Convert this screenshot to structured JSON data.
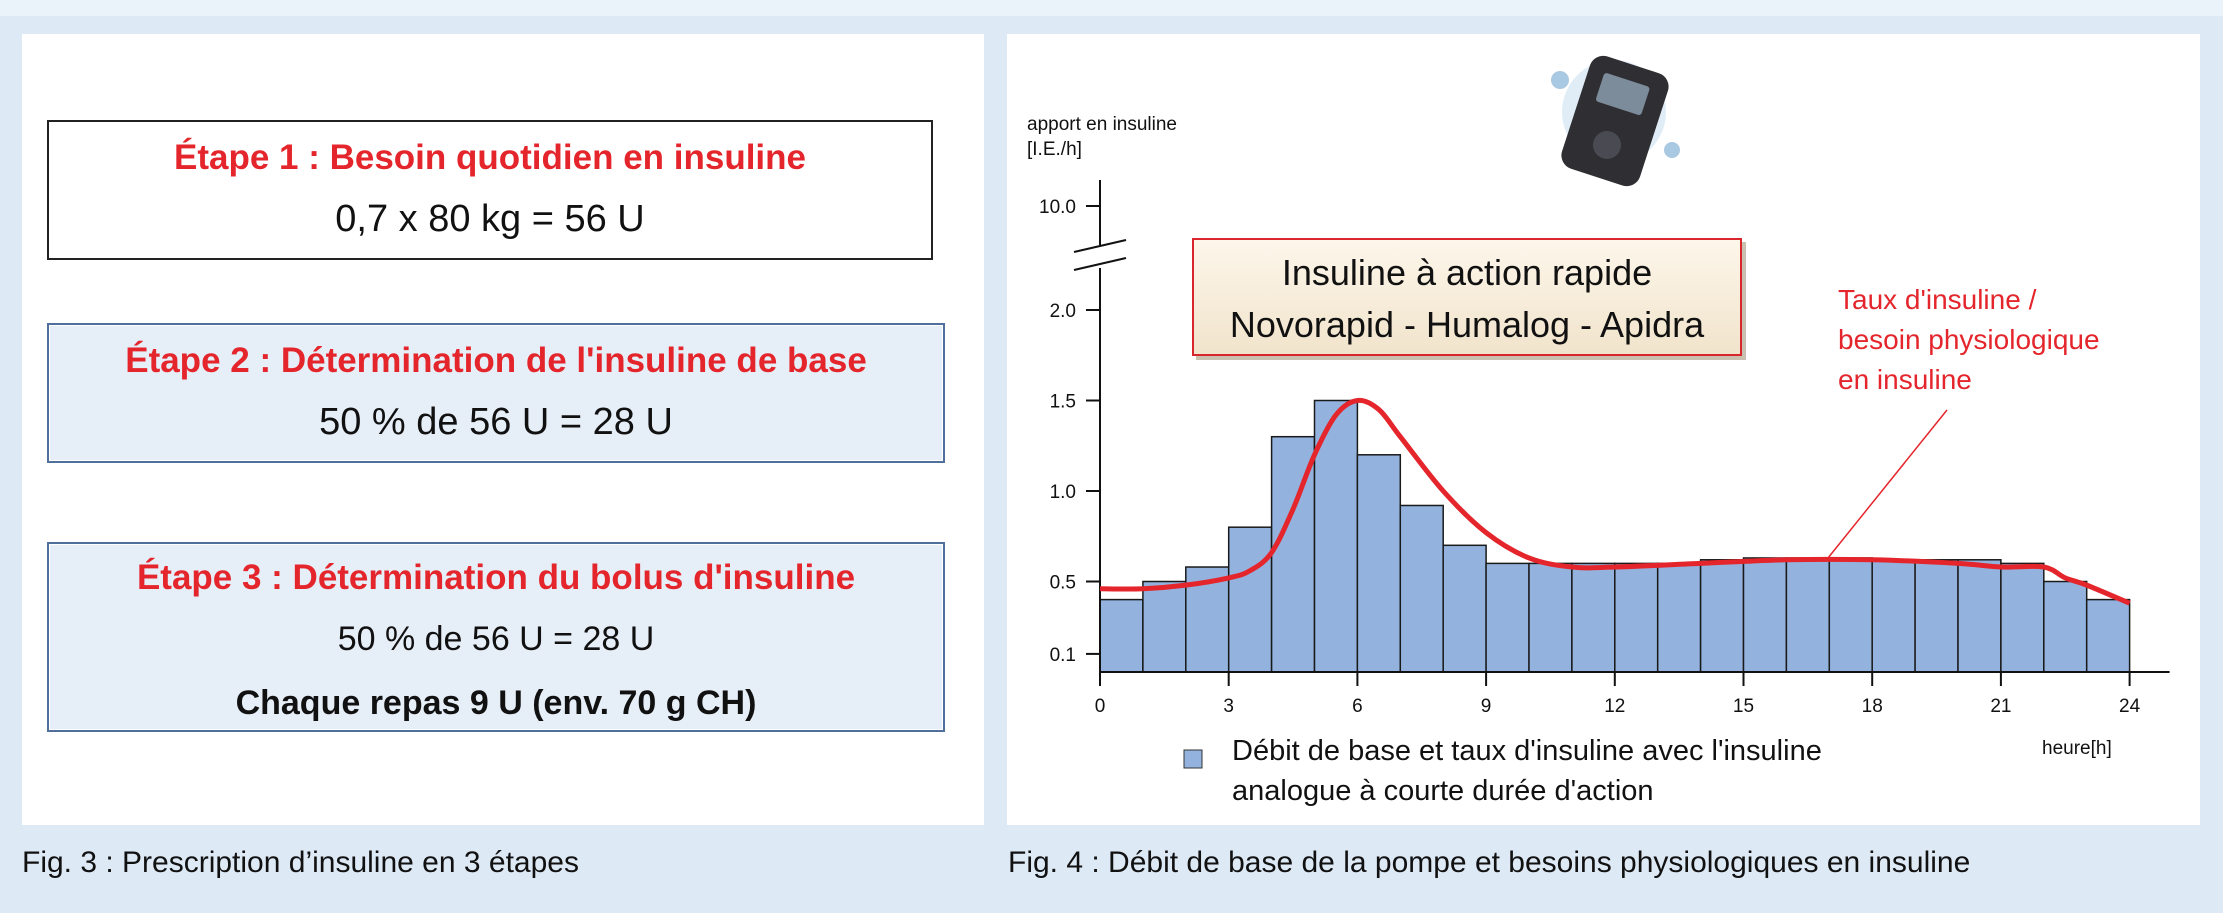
{
  "fig3": {
    "step1": {
      "title": "Étape 1 : Besoin quotidien en insuline",
      "line": "0,7 x 80 kg = 56 U"
    },
    "step2": {
      "title": "Étape 2 : Détermination de l'insuline de base",
      "line": "50 % de 56 U = 28 U"
    },
    "step3": {
      "title": "Étape 3 : Détermination du bolus d'insuline",
      "line1": "50 % de 56 U = 28 U",
      "line2": "Chaque repas 9 U (env. 70 g CH)"
    },
    "caption": "Fig. 3 : Prescription d’insuline en 3 étapes"
  },
  "fig4": {
    "caption": "Fig. 4 : Débit de base de la pompe et besoins physiologiques en insuline",
    "device_image": "insulin-pump-photo",
    "title_line1": "Insuline à action rapide",
    "title_line2": "Novorapid - Humalog - Apidra",
    "curve_label": [
      "Taux d'insuline /",
      "besoin physiologique",
      "en insuline"
    ],
    "ylabel_line1": "apport en insuline",
    "ylabel_line2": "[I.E./h]",
    "xlabel": "heure[h]",
    "legend_line1": "Débit de base et taux d'insuline avec l'insuline",
    "legend_line2": "analogue à courte durée d'action"
  },
  "chart_data": {
    "type": "bar",
    "x_ticks": [
      0,
      3,
      6,
      9,
      12,
      15,
      18,
      21,
      24
    ],
    "y_ticks": [
      "0.1",
      "0.5",
      "1.0",
      "1.5",
      "2.0",
      "10.0"
    ],
    "y_axis_break": true,
    "xlim": [
      0,
      24
    ],
    "ylim": [
      0,
      2.0
    ],
    "bar_color": "#93b3de",
    "curve_color": "#e4262c",
    "series": [
      {
        "type": "bar",
        "x_start": [
          0,
          1,
          2,
          3,
          4,
          5,
          6,
          7,
          8,
          9,
          10,
          11,
          12,
          13,
          14,
          15,
          16,
          17,
          18,
          19,
          20,
          21,
          22,
          23
        ],
        "values": [
          0.4,
          0.5,
          0.58,
          0.8,
          1.3,
          1.5,
          1.2,
          0.92,
          0.7,
          0.6,
          0.6,
          0.6,
          0.6,
          0.6,
          0.62,
          0.63,
          0.63,
          0.63,
          0.62,
          0.62,
          0.62,
          0.6,
          0.5,
          0.4
        ]
      },
      {
        "type": "line",
        "x": [
          0,
          1,
          2,
          3,
          3.5,
          4,
          4.5,
          5,
          5.5,
          6,
          6.5,
          7,
          8,
          9,
          10,
          11,
          12,
          14,
          16,
          18,
          20,
          21,
          22,
          22.5,
          23,
          24
        ],
        "values": [
          0.46,
          0.46,
          0.48,
          0.52,
          0.56,
          0.66,
          0.9,
          1.2,
          1.42,
          1.5,
          1.45,
          1.3,
          1.0,
          0.77,
          0.63,
          0.58,
          0.58,
          0.6,
          0.62,
          0.62,
          0.6,
          0.58,
          0.58,
          0.52,
          0.48,
          0.38
        ]
      }
    ]
  }
}
